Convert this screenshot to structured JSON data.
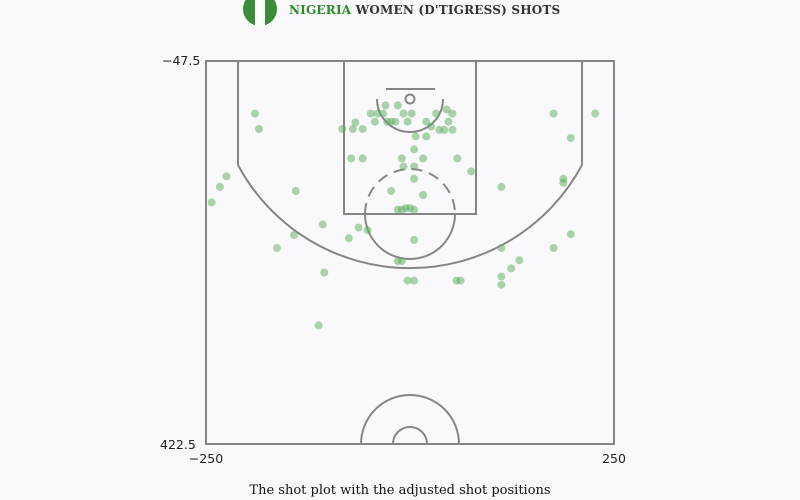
{
  "header": {
    "team_highlight": "NIGERIA",
    "team_rest": "WOMEN (D'TIGRESS) SHOTS",
    "flag_colors": [
      "#3a8e3a",
      "#ffffff",
      "#3a8e3a"
    ]
  },
  "caption": "The shot plot with the adjusted shot positions",
  "colors": {
    "court_lines": "#858585",
    "shot": "#5aac5a",
    "background": "#f9f9fb"
  },
  "chart_data": {
    "type": "scatter",
    "title": "NIGERIA WOMEN (D'TIGRESS) SHOTS",
    "xlim": [
      -250,
      250
    ],
    "ylim": [
      -47.5,
      422.5
    ],
    "y_inverted": true,
    "x_tick_labels": [
      "−250",
      "250"
    ],
    "y_tick_labels": [
      "−47.5",
      "422.5"
    ],
    "grid": false,
    "legend": "none",
    "points": [
      [
        -190,
        17
      ],
      [
        -233,
        107
      ],
      [
        -243,
        126
      ],
      [
        -225,
        94
      ],
      [
        -185,
        36
      ],
      [
        -163,
        182
      ],
      [
        -142,
        166
      ],
      [
        -58,
        72
      ],
      [
        -70,
        36
      ],
      [
        -83,
        36
      ],
      [
        -67,
        28
      ],
      [
        -52,
        160
      ],
      [
        -112,
        277
      ],
      [
        -140,
        112
      ],
      [
        -107,
        153
      ],
      [
        -75,
        170
      ],
      [
        -63,
        157
      ],
      [
        -72,
        72
      ],
      [
        -58,
        36
      ],
      [
        -48,
        17
      ],
      [
        -40,
        17
      ],
      [
        -33,
        17
      ],
      [
        -43,
        27
      ],
      [
        -28,
        27
      ],
      [
        -23,
        27
      ],
      [
        -30,
        7
      ],
      [
        -15,
        7
      ],
      [
        -18,
        27
      ],
      [
        -8,
        17
      ],
      [
        -23,
        112
      ],
      [
        -3,
        27
      ],
      [
        2,
        17
      ],
      [
        -10,
        72
      ],
      [
        -5,
        133
      ],
      [
        -10,
        135
      ],
      [
        -15,
        135
      ],
      [
        5,
        135
      ],
      [
        0,
        133
      ],
      [
        -15,
        198
      ],
      [
        -8,
        82
      ],
      [
        5,
        82
      ],
      [
        5,
        61
      ],
      [
        7,
        45
      ],
      [
        16,
        72
      ],
      [
        20,
        27
      ],
      [
        20,
        45
      ],
      [
        26,
        33
      ],
      [
        32,
        17
      ],
      [
        36,
        37
      ],
      [
        45,
        12
      ],
      [
        52,
        17
      ],
      [
        47,
        27
      ],
      [
        42,
        37
      ],
      [
        52,
        37
      ],
      [
        58,
        72
      ],
      [
        75,
        88
      ],
      [
        5,
        97
      ],
      [
        16,
        117
      ],
      [
        5,
        172
      ],
      [
        -10,
        198
      ],
      [
        -3,
        222
      ],
      [
        5,
        222
      ],
      [
        57,
        222
      ],
      [
        62,
        222
      ],
      [
        112,
        107
      ],
      [
        112,
        182
      ],
      [
        112,
        217
      ],
      [
        112,
        227
      ],
      [
        124,
        207
      ],
      [
        134,
        197
      ],
      [
        176,
        182
      ],
      [
        188,
        102
      ],
      [
        188,
        97
      ],
      [
        197,
        165
      ],
      [
        176,
        17
      ],
      [
        227,
        17
      ],
      [
        197,
        47
      ],
      [
        -105,
        212
      ]
    ]
  }
}
